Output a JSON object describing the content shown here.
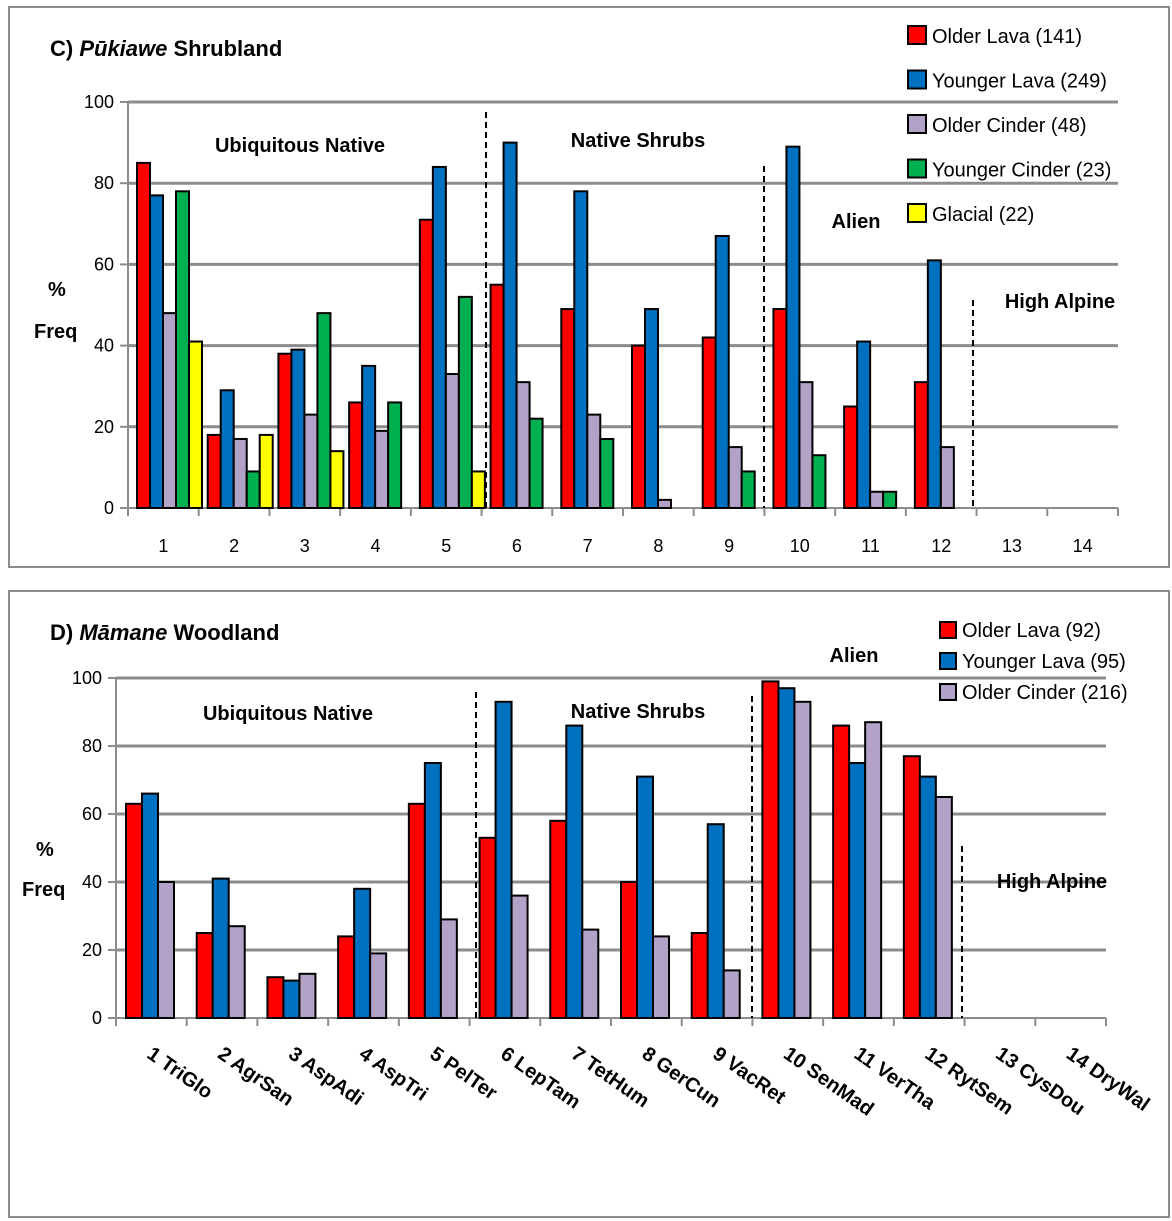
{
  "chart_data": [
    {
      "type": "bar",
      "panel": "C",
      "title_prefix": "C) ",
      "title_italic": "Pūkiawe",
      "title_suffix": " Shrubland",
      "ylabel_line1": "%",
      "ylabel_line2": "Freq",
      "ylim": [
        0,
        100
      ],
      "yticks": [
        "0",
        "20",
        "40",
        "60",
        "80",
        "100"
      ],
      "grid": true,
      "legend_position": "top-right",
      "categories": [
        "1",
        "2",
        "3",
        "4",
        "5",
        "6",
        "7",
        "8",
        "9",
        "10",
        "11",
        "12",
        "13",
        "14"
      ],
      "series": [
        {
          "name": "Older Lava (141)",
          "color": "#ff0000",
          "values": [
            85,
            18,
            38,
            26,
            71,
            55,
            49,
            40,
            42,
            49,
            25,
            31,
            0,
            0
          ]
        },
        {
          "name": "Younger Lava (249)",
          "color": "#0070c0",
          "values": [
            77,
            29,
            39,
            35,
            84,
            90,
            78,
            49,
            67,
            89,
            41,
            61,
            0,
            0
          ]
        },
        {
          "name": "Older Cinder (48)",
          "color": "#b3a2c7",
          "values": [
            48,
            17,
            23,
            19,
            33,
            31,
            23,
            2,
            15,
            31,
            4,
            15,
            0,
            0
          ]
        },
        {
          "name": "Younger Cinder (23)",
          "color": "#00b050",
          "values": [
            78,
            9,
            48,
            26,
            52,
            22,
            17,
            0,
            9,
            13,
            4,
            0,
            0,
            0
          ]
        },
        {
          "name": "Glacial (22)",
          "color": "#ffff00",
          "values": [
            41,
            18,
            14,
            0,
            9,
            0,
            0,
            0,
            0,
            0,
            0,
            0,
            0,
            0
          ]
        }
      ],
      "regions": [
        {
          "label": "Ubiquitous Native"
        },
        {
          "label": "Native Shrubs"
        },
        {
          "label": "Alien"
        },
        {
          "label": "High Alpine"
        }
      ]
    },
    {
      "type": "bar",
      "panel": "D",
      "title_prefix": "D) ",
      "title_italic": "Māmane",
      "title_suffix": " Woodland",
      "ylabel_line1": "%",
      "ylabel_line2": "Freq",
      "ylim": [
        0,
        100
      ],
      "yticks": [
        "0",
        "20",
        "40",
        "60",
        "80",
        "100"
      ],
      "grid": true,
      "legend_position": "top-right",
      "categories": [
        "1 TriGlo",
        "2 AgrSan",
        "3 AspAdi",
        "4 AspTri",
        "5 PelTer",
        "6 LepTam",
        "7 TetHum",
        "8 GerCun",
        "9 VacRet",
        "10 SenMad",
        "11 VerTha",
        "12 RytSem",
        "13 CysDou",
        "14 DryWal"
      ],
      "series": [
        {
          "name": "Older Lava (92)",
          "color": "#ff0000",
          "values": [
            63,
            25,
            12,
            24,
            63,
            53,
            58,
            40,
            25,
            99,
            86,
            77,
            0,
            0
          ]
        },
        {
          "name": "Younger Lava (95)",
          "color": "#0070c0",
          "values": [
            66,
            41,
            11,
            38,
            75,
            93,
            86,
            71,
            57,
            97,
            75,
            71,
            0,
            0
          ]
        },
        {
          "name": "Older Cinder (216)",
          "color": "#b3a2c7",
          "values": [
            40,
            27,
            13,
            19,
            29,
            36,
            26,
            24,
            14,
            93,
            87,
            65,
            0,
            0
          ]
        }
      ],
      "regions": [
        {
          "label": "Ubiquitous Native"
        },
        {
          "label": "Native Shrubs"
        },
        {
          "label": "Alien"
        },
        {
          "label": "High Alpine"
        }
      ]
    }
  ]
}
